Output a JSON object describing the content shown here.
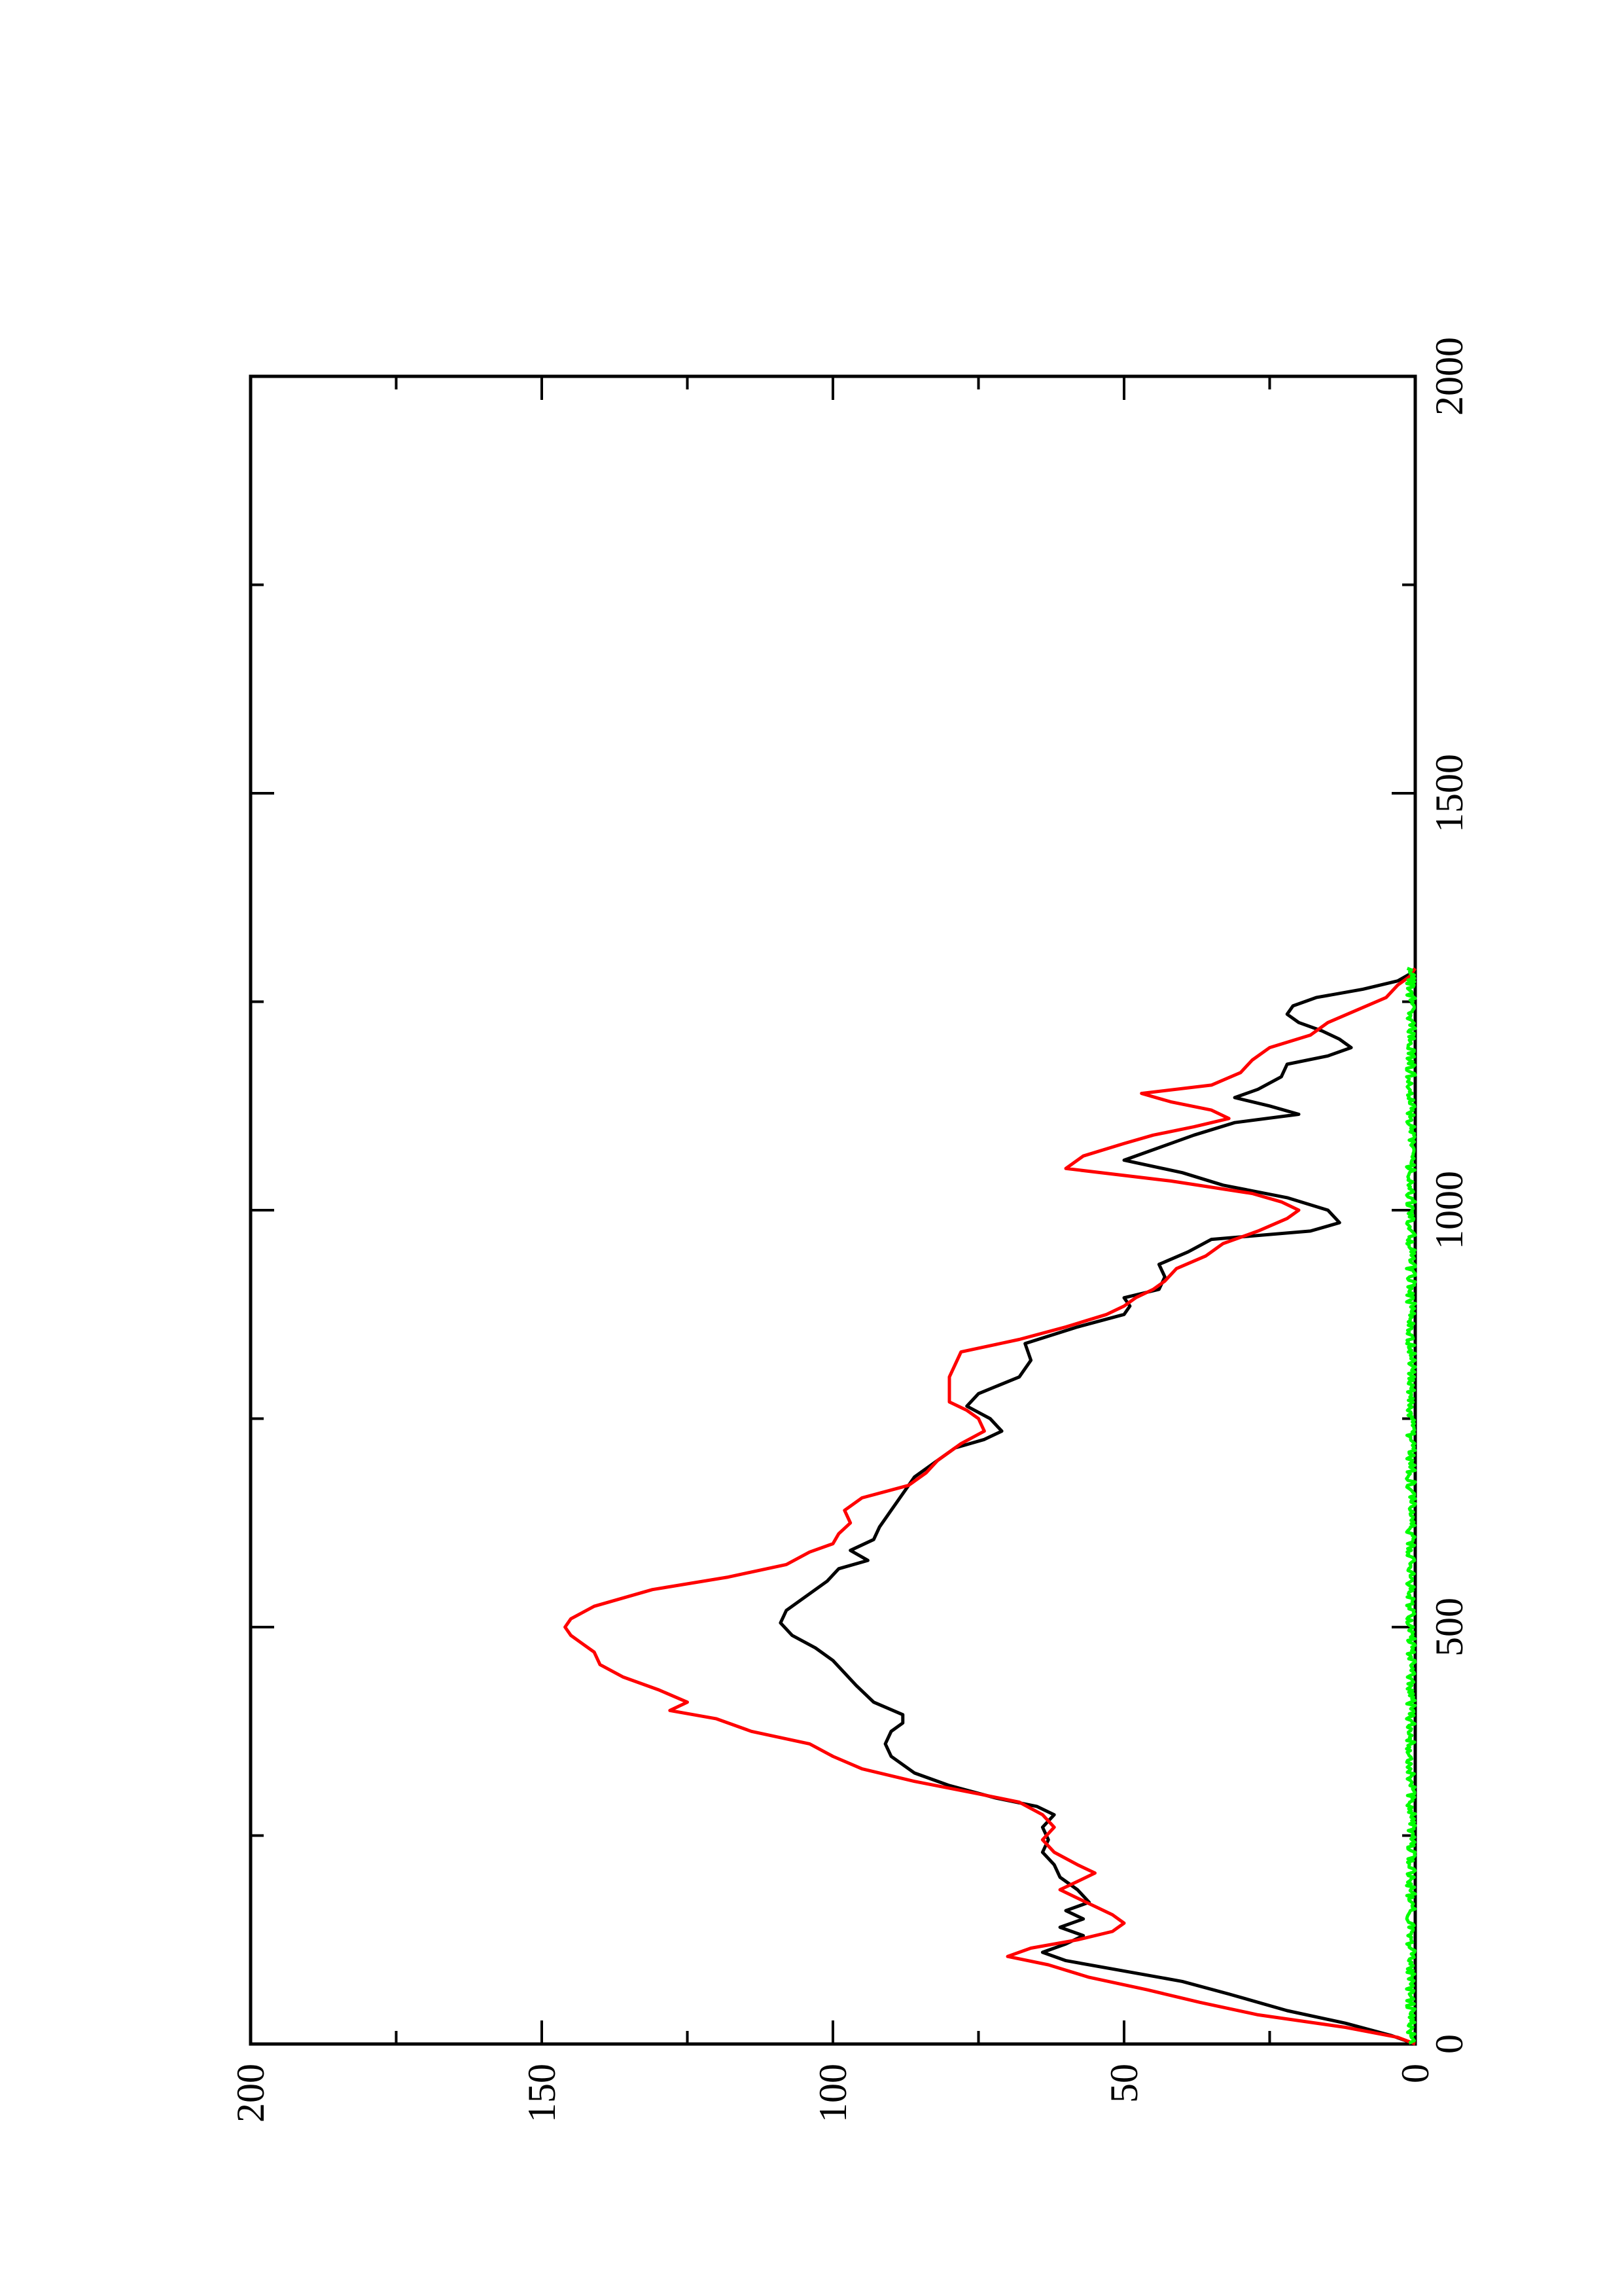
{
  "chart_data": {
    "type": "line",
    "orientation": "rotated-90-counterclockwise",
    "title": "",
    "xlabel": "",
    "ylabel": "",
    "xlim": [
      0,
      2000
    ],
    "ylim": [
      0,
      200
    ],
    "x_ticks": [
      "0",
      "500",
      "1000",
      "1500",
      "2000"
    ],
    "y_ticks": [
      "0",
      "50",
      "100",
      "150",
      "200"
    ],
    "grid": false,
    "legend": "none",
    "series": [
      {
        "color": "#000000",
        "points": [
          [
            0,
            0
          ],
          [
            10,
            4
          ],
          [
            25,
            12
          ],
          [
            40,
            22
          ],
          [
            60,
            32
          ],
          [
            75,
            40
          ],
          [
            90,
            52
          ],
          [
            100,
            60
          ],
          [
            110,
            64
          ],
          [
            120,
            60
          ],
          [
            130,
            57
          ],
          [
            140,
            61
          ],
          [
            150,
            57
          ],
          [
            160,
            60
          ],
          [
            170,
            56
          ],
          [
            185,
            58
          ],
          [
            200,
            61
          ],
          [
            215,
            62
          ],
          [
            230,
            64
          ],
          [
            245,
            63
          ],
          [
            260,
            64
          ],
          [
            275,
            62
          ],
          [
            285,
            65
          ],
          [
            295,
            72
          ],
          [
            310,
            80
          ],
          [
            325,
            86
          ],
          [
            345,
            90
          ],
          [
            360,
            91
          ],
          [
            375,
            90
          ],
          [
            385,
            88
          ],
          [
            395,
            88
          ],
          [
            410,
            93
          ],
          [
            430,
            96
          ],
          [
            445,
            98
          ],
          [
            460,
            100
          ],
          [
            475,
            103
          ],
          [
            490,
            107
          ],
          [
            505,
            109
          ],
          [
            520,
            108
          ],
          [
            540,
            104
          ],
          [
            555,
            101
          ],
          [
            570,
            99
          ],
          [
            580,
            94
          ],
          [
            592,
            97
          ],
          [
            605,
            93
          ],
          [
            620,
            92
          ],
          [
            640,
            90
          ],
          [
            660,
            88
          ],
          [
            680,
            86
          ],
          [
            700,
            82
          ],
          [
            715,
            79
          ],
          [
            725,
            74
          ],
          [
            735,
            71
          ],
          [
            750,
            73
          ],
          [
            765,
            77
          ],
          [
            780,
            75
          ],
          [
            800,
            68
          ],
          [
            820,
            66
          ],
          [
            840,
            67
          ],
          [
            860,
            58
          ],
          [
            875,
            50
          ],
          [
            885,
            49
          ],
          [
            895,
            50
          ],
          [
            905,
            44
          ],
          [
            920,
            43
          ],
          [
            935,
            44
          ],
          [
            950,
            39
          ],
          [
            965,
            35
          ],
          [
            975,
            18
          ],
          [
            985,
            13
          ],
          [
            1000,
            15
          ],
          [
            1015,
            22
          ],
          [
            1030,
            33
          ],
          [
            1045,
            40
          ],
          [
            1060,
            50
          ],
          [
            1075,
            44
          ],
          [
            1090,
            38
          ],
          [
            1105,
            31
          ],
          [
            1115,
            20
          ],
          [
            1125,
            25
          ],
          [
            1135,
            31
          ],
          [
            1145,
            27
          ],
          [
            1160,
            23
          ],
          [
            1175,
            22
          ],
          [
            1185,
            15
          ],
          [
            1195,
            11
          ],
          [
            1205,
            13
          ],
          [
            1215,
            16
          ],
          [
            1225,
            20
          ],
          [
            1235,
            22
          ],
          [
            1245,
            21
          ],
          [
            1255,
            17
          ],
          [
            1265,
            9
          ],
          [
            1275,
            3
          ],
          [
            1283,
            1
          ],
          [
            1290,
            0
          ]
        ]
      },
      {
        "color": "#ff0000",
        "points": [
          [
            0,
            0
          ],
          [
            8,
            3
          ],
          [
            20,
            12
          ],
          [
            35,
            27
          ],
          [
            50,
            37
          ],
          [
            65,
            46
          ],
          [
            80,
            56
          ],
          [
            95,
            63
          ],
          [
            105,
            70
          ],
          [
            115,
            66
          ],
          [
            125,
            58
          ],
          [
            135,
            52
          ],
          [
            145,
            50
          ],
          [
            155,
            52
          ],
          [
            165,
            55
          ],
          [
            175,
            58
          ],
          [
            185,
            61
          ],
          [
            195,
            58
          ],
          [
            205,
            55
          ],
          [
            215,
            58
          ],
          [
            230,
            62
          ],
          [
            245,
            64
          ],
          [
            260,
            62
          ],
          [
            275,
            64
          ],
          [
            290,
            68
          ],
          [
            300,
            75
          ],
          [
            315,
            86
          ],
          [
            330,
            95
          ],
          [
            345,
            100
          ],
          [
            360,
            104
          ],
          [
            375,
            114
          ],
          [
            390,
            120
          ],
          [
            400,
            128
          ],
          [
            410,
            125
          ],
          [
            425,
            130
          ],
          [
            440,
            136
          ],
          [
            455,
            140
          ],
          [
            470,
            141
          ],
          [
            480,
            143
          ],
          [
            490,
            145
          ],
          [
            500,
            146
          ],
          [
            510,
            145
          ],
          [
            525,
            141
          ],
          [
            545,
            131
          ],
          [
            560,
            118
          ],
          [
            575,
            108
          ],
          [
            590,
            104
          ],
          [
            600,
            100
          ],
          [
            612,
            99
          ],
          [
            625,
            97
          ],
          [
            640,
            98
          ],
          [
            655,
            95
          ],
          [
            670,
            87
          ],
          [
            685,
            84
          ],
          [
            700,
            82
          ],
          [
            720,
            78
          ],
          [
            735,
            74
          ],
          [
            750,
            75
          ],
          [
            760,
            77
          ],
          [
            770,
            80
          ],
          [
            785,
            80
          ],
          [
            800,
            80
          ],
          [
            815,
            79
          ],
          [
            830,
            78
          ],
          [
            845,
            68
          ],
          [
            860,
            60
          ],
          [
            875,
            53
          ],
          [
            885,
            50
          ],
          [
            895,
            48
          ],
          [
            905,
            45
          ],
          [
            915,
            43
          ],
          [
            930,
            41
          ],
          [
            945,
            36
          ],
          [
            960,
            33
          ],
          [
            975,
            27
          ],
          [
            990,
            22
          ],
          [
            1000,
            20
          ],
          [
            1010,
            23
          ],
          [
            1020,
            28
          ],
          [
            1035,
            42
          ],
          [
            1050,
            60
          ],
          [
            1065,
            57
          ],
          [
            1080,
            50
          ],
          [
            1090,
            45
          ],
          [
            1100,
            38
          ],
          [
            1110,
            32
          ],
          [
            1120,
            35
          ],
          [
            1130,
            42
          ],
          [
            1140,
            47
          ],
          [
            1150,
            35
          ],
          [
            1165,
            30
          ],
          [
            1180,
            28
          ],
          [
            1195,
            25
          ],
          [
            1210,
            18
          ],
          [
            1225,
            15
          ],
          [
            1240,
            10
          ],
          [
            1255,
            5
          ],
          [
            1270,
            3
          ],
          [
            1280,
            1
          ],
          [
            1290,
            0
          ]
        ]
      },
      {
        "color": "#00ff00",
        "noise_band": [
          0,
          1.5
        ],
        "x_range": [
          0,
          1290
        ]
      }
    ]
  }
}
